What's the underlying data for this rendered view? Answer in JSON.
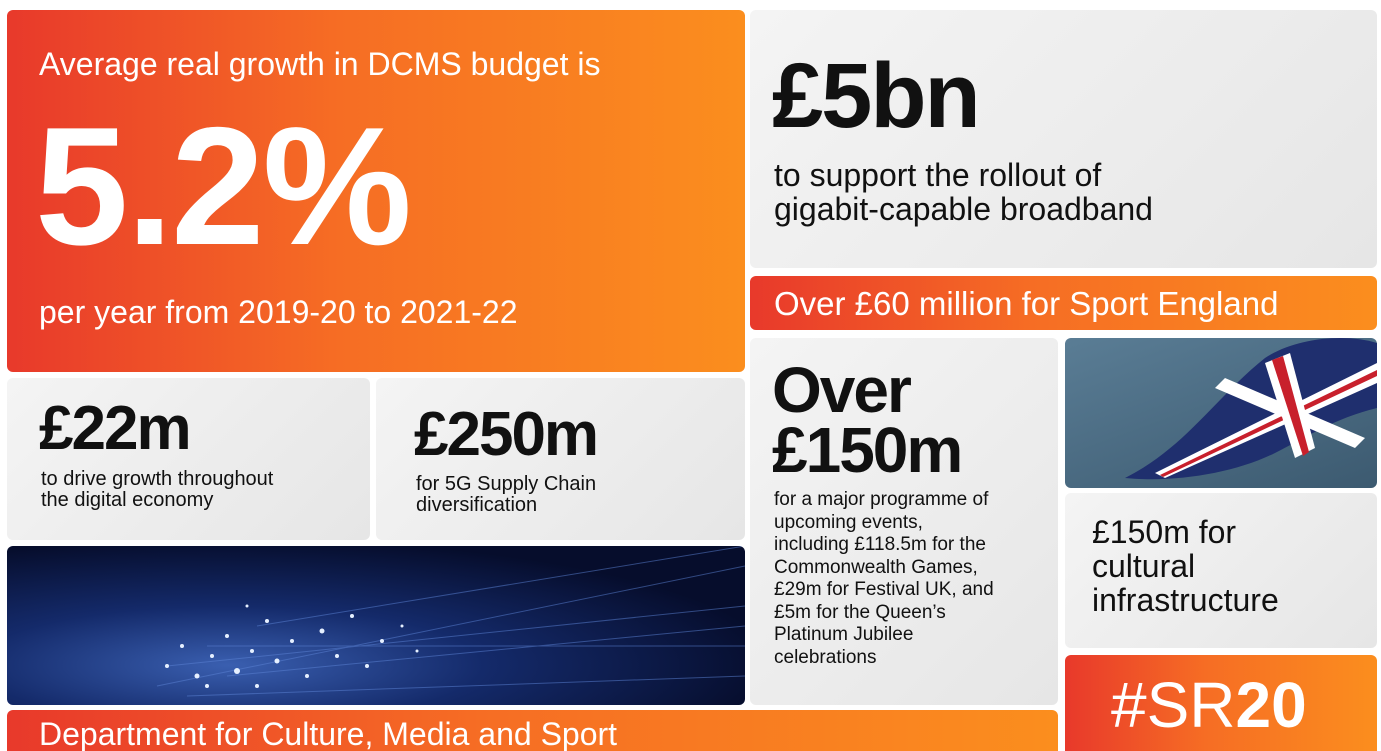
{
  "budget": {
    "intro": "Average real growth in DCMS budget is",
    "figure": "5.2%",
    "period": "per year from 2019-20 to 2021-22"
  },
  "broadband": {
    "figure": "£5bn",
    "lines": [
      "to support the rollout of",
      "gigabit-capable broadband"
    ]
  },
  "sport": {
    "text": "Over £60 million for Sport England"
  },
  "digital": {
    "figure": "£22m",
    "lines": [
      "to drive growth throughout",
      "the digital economy"
    ]
  },
  "supply_chain": {
    "figure": "£250m",
    "lines": [
      "for 5G Supply Chain",
      "diversification"
    ]
  },
  "events": {
    "figure_lines": [
      "Over",
      "£150m"
    ],
    "lines": [
      "for a major programme of",
      "upcoming events,",
      "including £118.5m for the",
      "Commonwealth Games,",
      "£29m for Festival UK, and",
      "£5m for the Queen’s",
      "Platinum Jubilee",
      "celebrations"
    ]
  },
  "culture": {
    "lines": [
      "£150m for",
      "cultural",
      "infrastructure"
    ]
  },
  "hashtag": {
    "prefix": "#SR",
    "suffix": "20"
  },
  "footer": {
    "text": "Department for Culture, Media and Sport"
  }
}
